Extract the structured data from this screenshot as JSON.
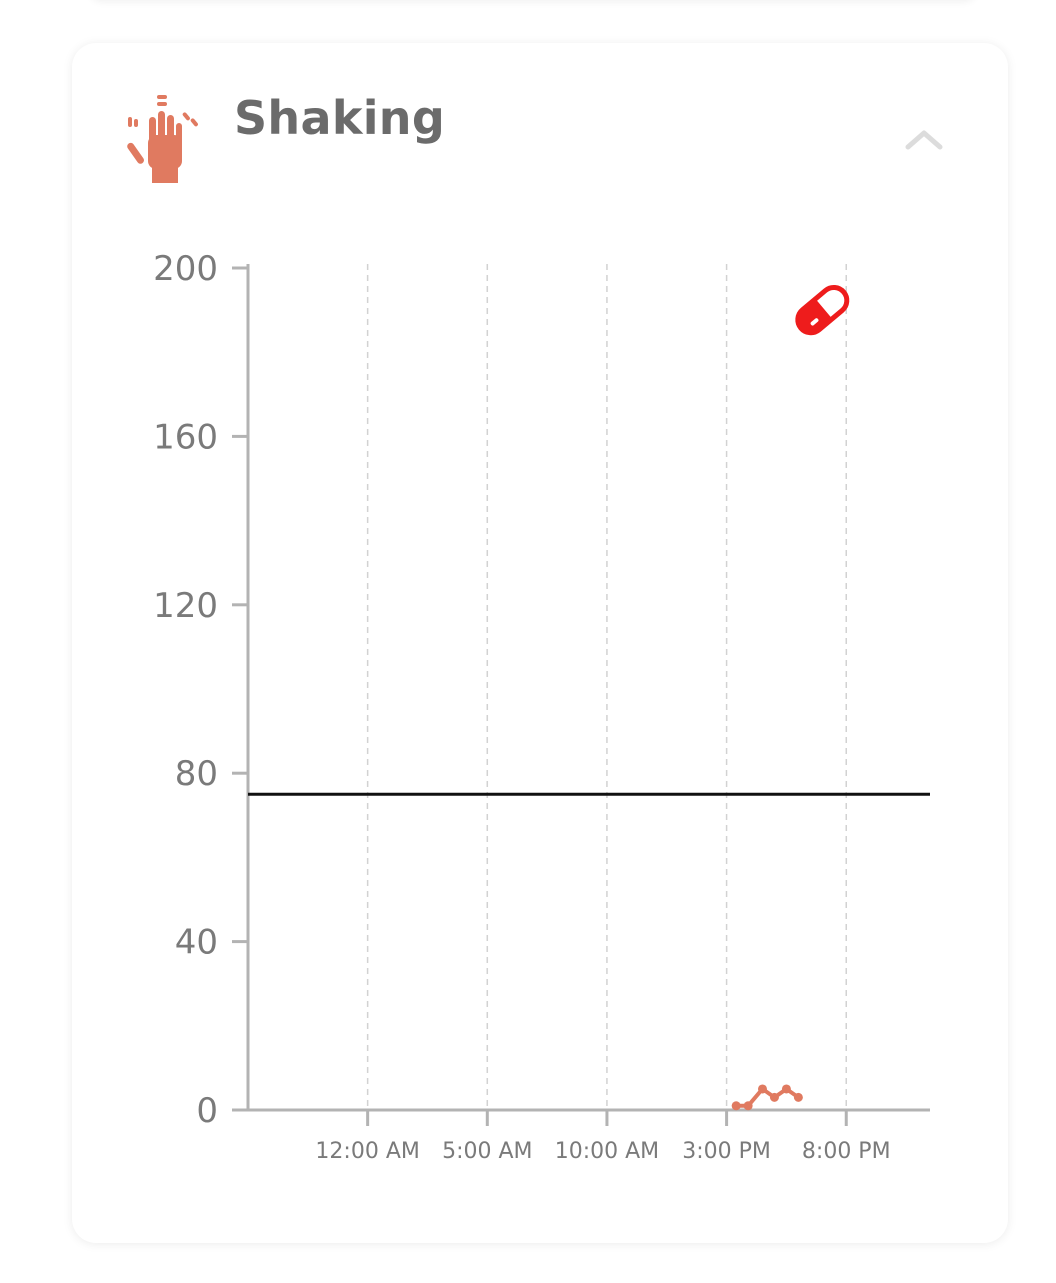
{
  "card": {
    "title": "Shaking",
    "icon": "shaking-hand-icon",
    "collapse_icon": "chevron-up-icon"
  },
  "colors": {
    "accent": "#e07a60",
    "medication": "#ee1c1c",
    "title_text": "#6b6b6b",
    "axis": "#b3b3b3",
    "threshold_line": "#111111"
  },
  "chart_data": {
    "type": "line",
    "yticks": [
      "0",
      "40",
      "80",
      "120",
      "160",
      "200"
    ],
    "ylim": [
      0,
      200
    ],
    "xticks": [
      "12:00 AM",
      "5:00 AM",
      "10:00 AM",
      "3:00 PM",
      "8:00 PM"
    ],
    "xtick_hours": [
      0,
      5,
      10,
      15,
      20
    ],
    "xlim_hours": [
      -5,
      23.5
    ],
    "grid": "vertical dashed",
    "threshold": 75,
    "series": [
      {
        "x_hours": [
          15.4,
          15.9,
          16.5,
          17.0,
          17.5,
          18.0
        ],
        "values": [
          1,
          1,
          5,
          3,
          5,
          3
        ]
      }
    ],
    "medication_marker": {
      "x_hours": 19.0,
      "y": 190,
      "icon": "pill-icon"
    }
  }
}
